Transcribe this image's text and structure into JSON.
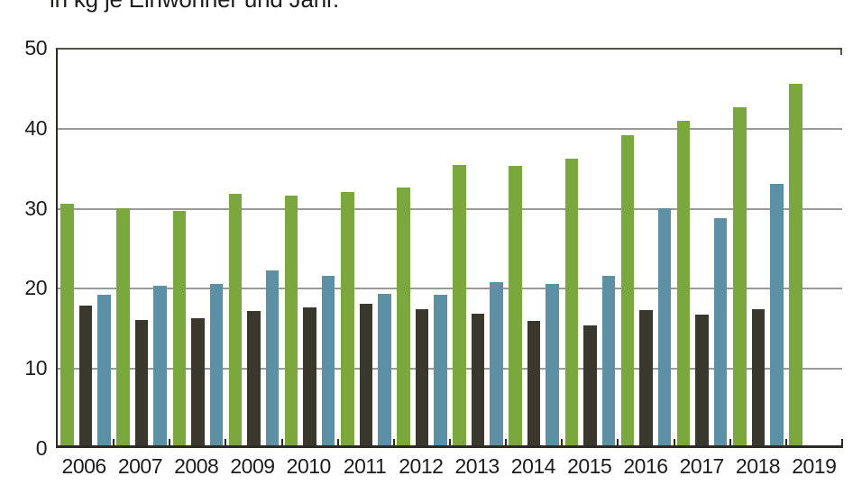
{
  "chart_data": {
    "type": "bar",
    "title": "in kg je Einwohner und Jahr.",
    "title_clipped_at_top": true,
    "categories": [
      "2006",
      "2007",
      "2008",
      "2009",
      "2010",
      "2011",
      "2012",
      "2013",
      "2014",
      "2015",
      "2016",
      "2017",
      "2018",
      "2019"
    ],
    "series": [
      {
        "name": "green",
        "color": "#7aa83c",
        "values": [
          30.7,
          30.1,
          29.8,
          31.9,
          31.7,
          32.1,
          32.7,
          35.5,
          35.4,
          36.3,
          39.3,
          41.1,
          42.8,
          45.7
        ]
      },
      {
        "name": "dark",
        "color": "#3a372c",
        "values": [
          17.9,
          16.1,
          16.3,
          17.2,
          17.6,
          18.1,
          17.4,
          16.9,
          15.9,
          15.4,
          17.3,
          16.7,
          17.4,
          null
        ]
      },
      {
        "name": "blue",
        "color": "#5c90a5",
        "values": [
          19.2,
          20.4,
          20.6,
          22.3,
          21.6,
          19.4,
          19.2,
          20.8,
          20.6,
          21.6,
          30.1,
          28.8,
          33.1,
          null
        ]
      }
    ],
    "xlabel": "",
    "ylabel": "",
    "ylim": [
      0,
      50
    ],
    "yticks": [
      0,
      10,
      20,
      30,
      40,
      50
    ],
    "grid": true,
    "legend": "none",
    "style": {
      "axis_color": "#2d2b26",
      "frame_top_color": "#55524b",
      "grid_color": "#9a9a9a",
      "text_color": "#1d1d1b",
      "background": "#ffffff"
    }
  }
}
